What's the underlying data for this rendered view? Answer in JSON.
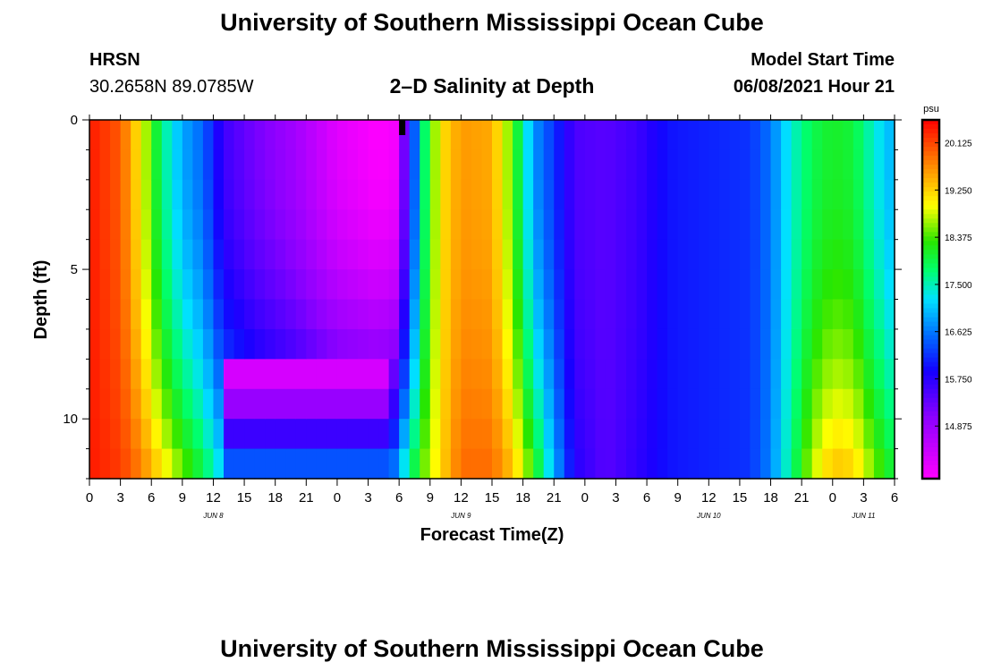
{
  "header": {
    "title": "University of Southern Mississippi Ocean Cube",
    "station_name": "HRSN",
    "station_coords": "30.2658N  89.0785W",
    "subtitle": "2–D Salinity at Depth",
    "model_label": "Model Start Time",
    "model_time": "06/08/2021 Hour 21",
    "footer_title": "University of Southern Mississippi Ocean Cube"
  },
  "chart_data": {
    "type": "heatmap",
    "title": "2–D Salinity at Depth",
    "xlabel": "Forecast Time(Z)",
    "ylabel": "Depth (ft)",
    "x_hours_range": [
      0,
      78
    ],
    "x_tick_labels": [
      "0",
      "3",
      "6",
      "9",
      "12",
      "15",
      "18",
      "21",
      "0",
      "3",
      "6",
      "9",
      "12",
      "15",
      "18",
      "21",
      "0",
      "3",
      "6",
      "9",
      "12",
      "15",
      "18",
      "21",
      "0",
      "3",
      "6"
    ],
    "date_labels": [
      {
        "label": "JUN 8",
        "hour": 12
      },
      {
        "label": "JUN 9",
        "hour": 36
      },
      {
        "label": "JUN 10",
        "hour": 60
      },
      {
        "label": "JUN 11",
        "hour": 75
      }
    ],
    "y_range": [
      0,
      12
    ],
    "y_tick_labels": [
      {
        "value": 0,
        "label": "0"
      },
      {
        "value": 5,
        "label": "5"
      },
      {
        "value": 10,
        "label": "10"
      }
    ],
    "y_reversed": true,
    "colorbar": {
      "unit": "psu",
      "min": 13.9,
      "max": 20.55,
      "tick_values": [
        "20.125",
        "19.250",
        "18.375",
        "17.500",
        "16.625",
        "15.750",
        "14.875"
      ]
    },
    "current_time_marker_hour": 30.3,
    "profiles": [
      {
        "hour": 0,
        "surface": 20.4,
        "bottom": 20.4
      },
      {
        "hour": 3,
        "surface": 20.0,
        "bottom": 20.2
      },
      {
        "hour": 5,
        "surface": 19.0,
        "bottom": 19.8
      },
      {
        "hour": 7,
        "surface": 17.7,
        "bottom": 19.2
      },
      {
        "hour": 9,
        "surface": 16.9,
        "bottom": 18.6
      },
      {
        "hour": 11,
        "surface": 16.5,
        "bottom": 18.0
      },
      {
        "hour": 13,
        "surface": 15.6,
        "bottom": 17.2
      },
      {
        "hour": 16,
        "surface": 15.2,
        "bottom": 16.8
      },
      {
        "hour": 20,
        "surface": 14.8,
        "bottom": 16.6
      },
      {
        "hour": 24,
        "surface": 14.2,
        "bottom": 16.5
      },
      {
        "hour": 28,
        "surface": 13.9,
        "bottom": 16.6
      },
      {
        "hour": 29.5,
        "surface": 14.0,
        "bottom": 16.8
      },
      {
        "hour": 31,
        "surface": 15.8,
        "bottom": 17.8
      },
      {
        "hour": 32.5,
        "surface": 17.8,
        "bottom": 18.6
      },
      {
        "hour": 34,
        "surface": 19.1,
        "bottom": 19.2
      },
      {
        "hour": 36,
        "surface": 19.6,
        "bottom": 19.9
      },
      {
        "hour": 39,
        "surface": 19.5,
        "bottom": 19.9
      },
      {
        "hour": 41,
        "surface": 18.4,
        "bottom": 19.4
      },
      {
        "hour": 43,
        "surface": 16.8,
        "bottom": 18.4
      },
      {
        "hour": 45,
        "surface": 16.2,
        "bottom": 17.0
      },
      {
        "hour": 47,
        "surface": 15.5,
        "bottom": 15.8
      },
      {
        "hour": 50,
        "surface": 15.4,
        "bottom": 15.4
      },
      {
        "hour": 53,
        "surface": 15.6,
        "bottom": 15.7
      },
      {
        "hour": 56,
        "surface": 16.0,
        "bottom": 16.0
      },
      {
        "hour": 64,
        "surface": 16.2,
        "bottom": 16.2
      },
      {
        "hour": 66,
        "surface": 16.6,
        "bottom": 16.7
      },
      {
        "hour": 68,
        "surface": 17.4,
        "bottom": 17.7
      },
      {
        "hour": 70,
        "surface": 17.9,
        "bottom": 18.8
      },
      {
        "hour": 72,
        "surface": 18.1,
        "bottom": 19.4
      },
      {
        "hour": 74,
        "surface": 18.0,
        "bottom": 19.3
      },
      {
        "hour": 76,
        "surface": 17.4,
        "bottom": 18.6
      },
      {
        "hour": 78,
        "surface": 16.9,
        "bottom": 18.0
      }
    ],
    "fresh_lens": {
      "from_hour": 13,
      "to_hour": 29.5,
      "low_value": 13.9,
      "high_value": 16.8
    }
  }
}
